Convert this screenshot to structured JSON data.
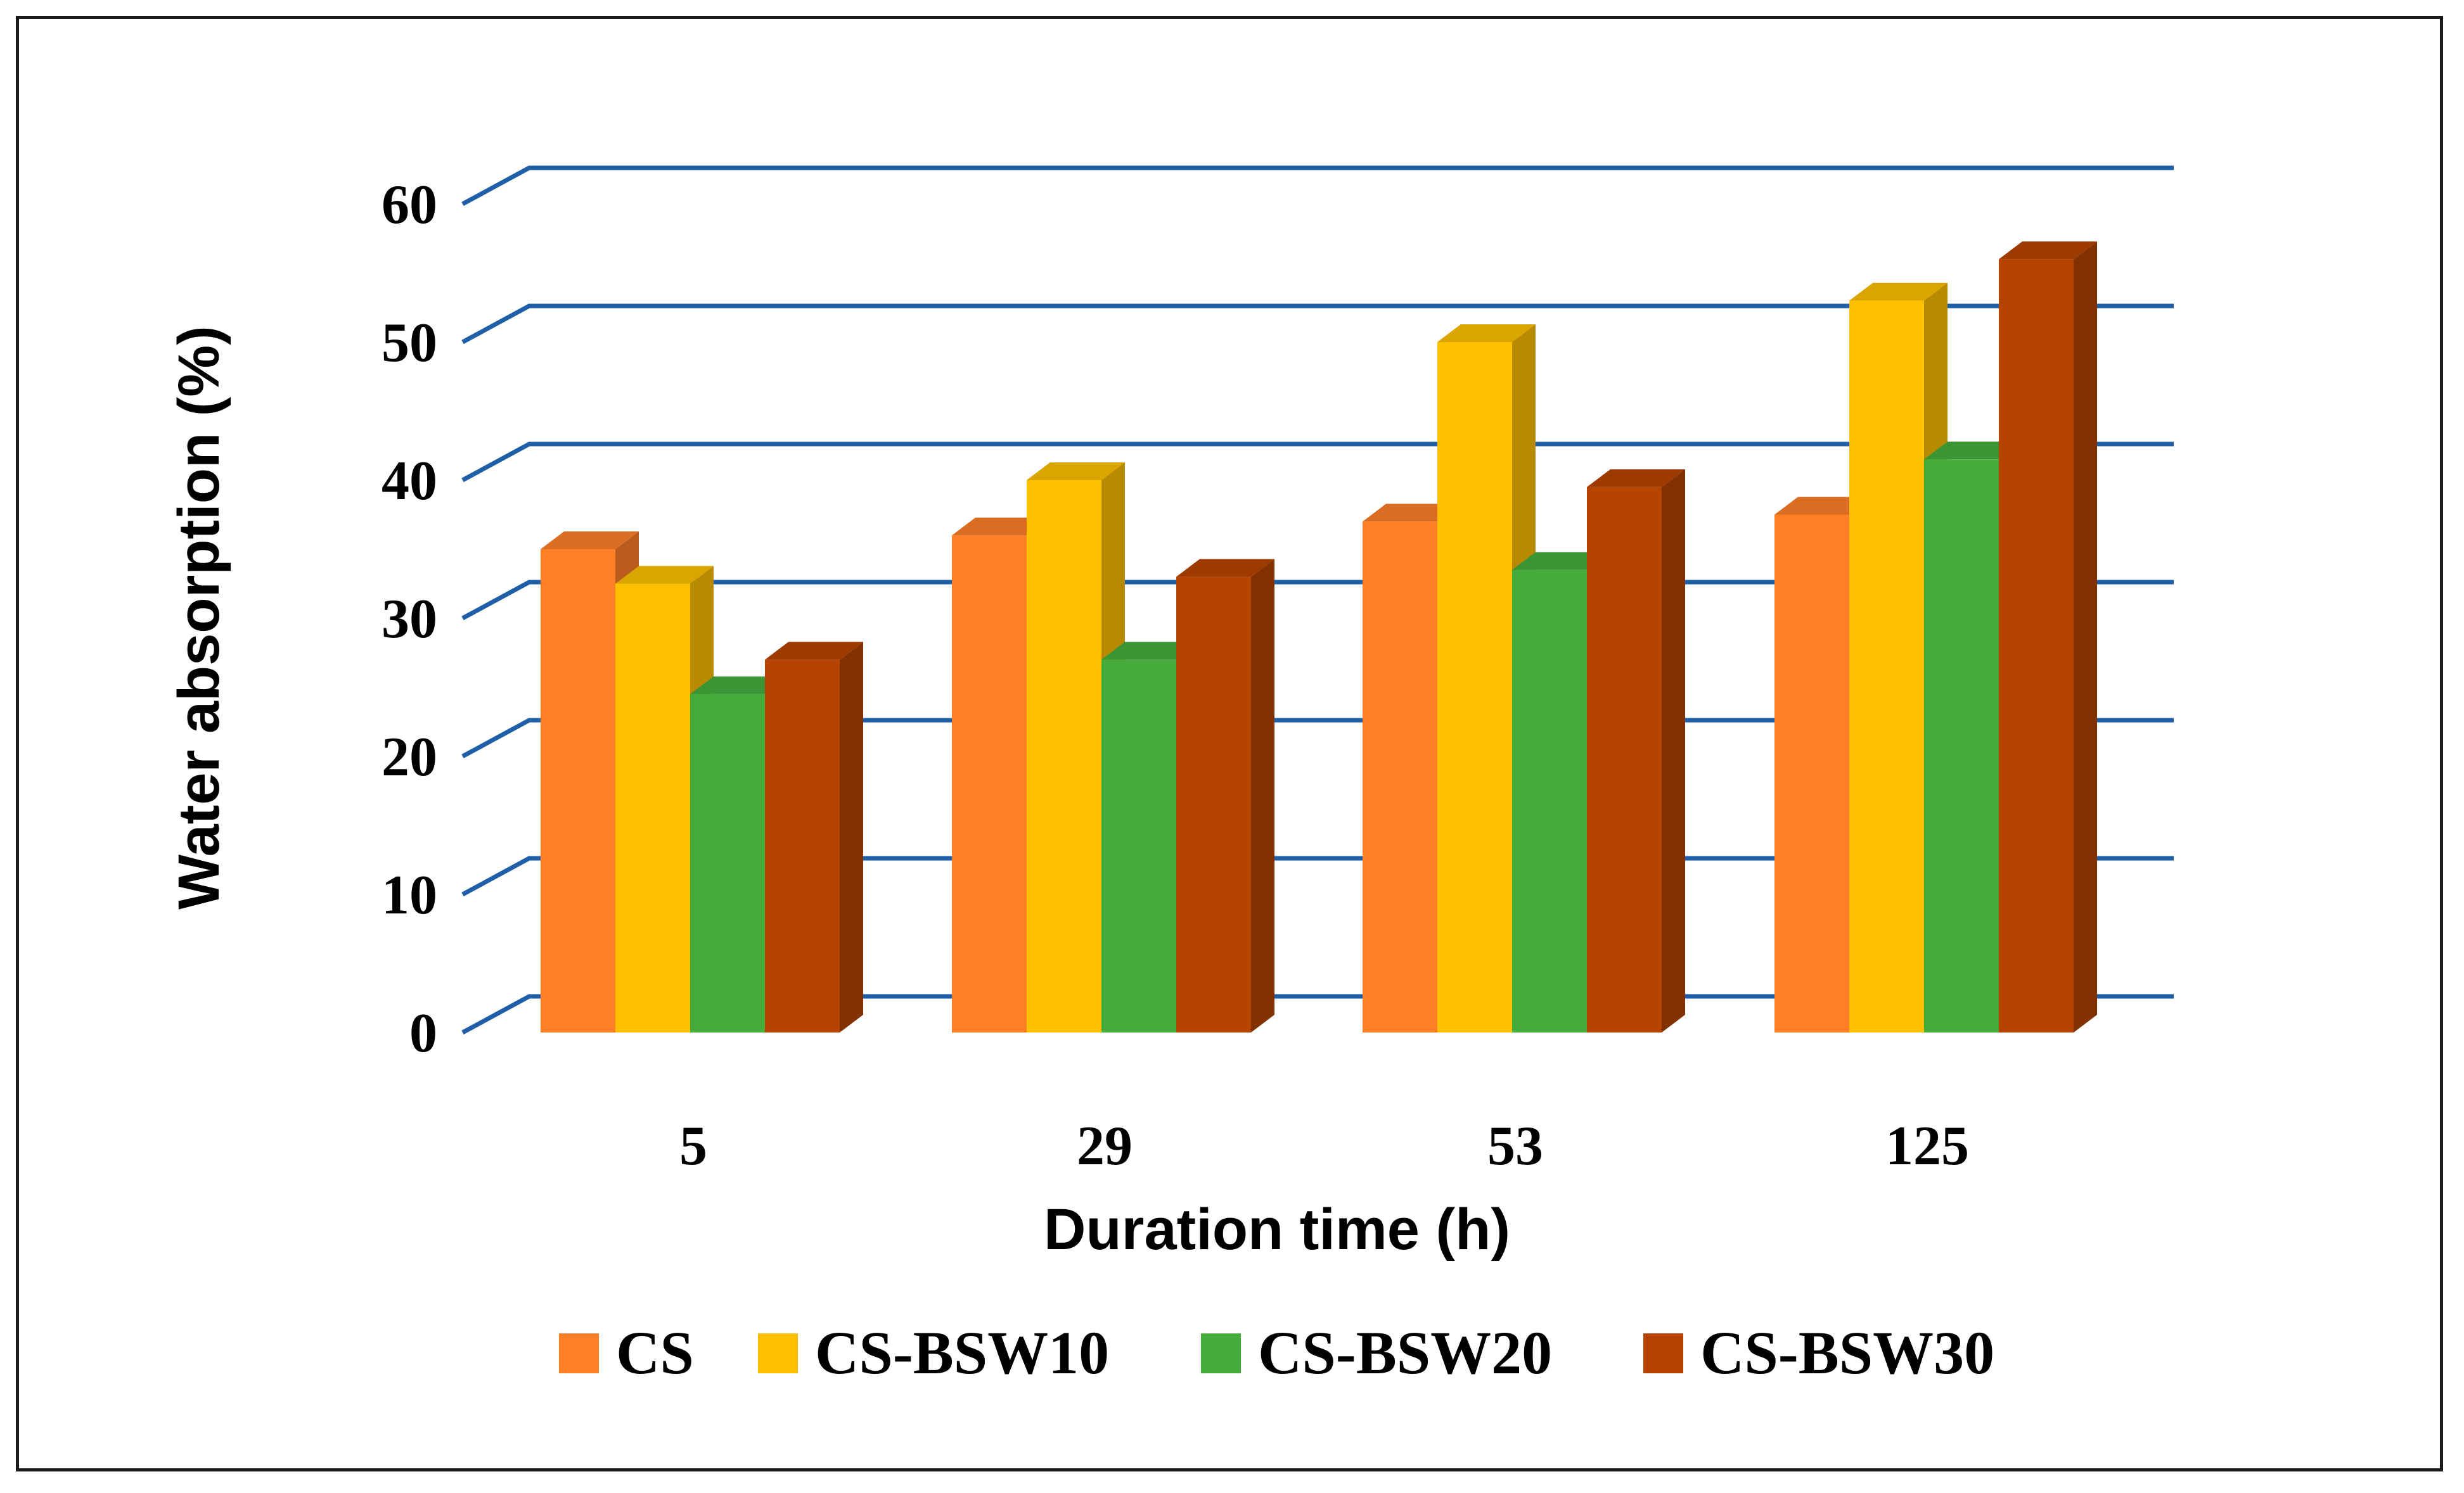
{
  "chart_data": {
    "type": "bar",
    "style": "3d-clustered-column",
    "title": "",
    "xlabel": "Duration time (h)",
    "ylabel": "Water absorption (%)",
    "ylim": [
      0,
      60
    ],
    "yticks": [
      0,
      10,
      20,
      30,
      40,
      50,
      60
    ],
    "grid": true,
    "legend_position": "bottom",
    "categories": [
      "5",
      "29",
      "53",
      "125"
    ],
    "series": [
      {
        "name": "CS",
        "color": "#FF7F27",
        "values": [
          35,
          36,
          37,
          37.5
        ]
      },
      {
        "name": "CS-BSW10",
        "color": "#FFC000",
        "values": [
          32.5,
          40,
          50,
          53
        ]
      },
      {
        "name": "CS-BSW20",
        "color": "#46AD3C",
        "values": [
          24.5,
          27,
          33.5,
          41.5
        ]
      },
      {
        "name": "CS-BSW30",
        "color": "#B54400",
        "values": [
          27,
          33,
          39.5,
          56
        ]
      }
    ],
    "gridline_color": "#1F5FA8"
  }
}
